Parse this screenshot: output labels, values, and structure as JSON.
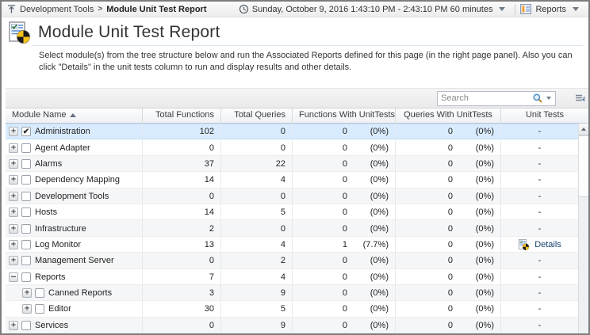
{
  "topbar": {
    "breadcrumb": {
      "items": [
        "Development Tools",
        "Module Unit Test Report"
      ],
      "separator": ">"
    },
    "time_range": "Sunday, October 9, 2016 1:43:10 PM - 2:43:10 PM 60 minutes",
    "reports_label": "Reports"
  },
  "header": {
    "title": "Module Unit Test Report"
  },
  "description": "Select module(s) from the tree structure below and run the Associated Reports defined for this page (in the right page panel). Also you can click \"Details\" in the unit tests column to run and display results and other details.",
  "toolbar": {
    "search_placeholder": "Search"
  },
  "colors": {
    "selected_row": "#d9ecff",
    "details_link": "#17406f",
    "pie_yellow": "#f6c21a",
    "pie_black": "#1a1a1a"
  },
  "table": {
    "columns": [
      {
        "label": "Module Name",
        "sort": "asc"
      },
      {
        "label": "Total Functions"
      },
      {
        "label": "Total Queries"
      },
      {
        "label": "Functions With UnitTests"
      },
      {
        "label": "Queries With UnitTests"
      },
      {
        "label": "Unit Tests"
      }
    ],
    "rows": [
      {
        "name": "Administration",
        "child": false,
        "expand": "+",
        "checked": true,
        "selected": true,
        "total_functions": "102",
        "total_queries": "0",
        "func_ut": "0",
        "func_ut_pct": "(0%)",
        "query_ut": "0",
        "query_ut_pct": "(0%)",
        "unit_tests": "-"
      },
      {
        "name": "Agent Adapter",
        "child": false,
        "expand": "+",
        "checked": false,
        "selected": false,
        "total_functions": "0",
        "total_queries": "0",
        "func_ut": "0",
        "func_ut_pct": "(0%)",
        "query_ut": "0",
        "query_ut_pct": "(0%)",
        "unit_tests": "-"
      },
      {
        "name": "Alarms",
        "child": false,
        "expand": "+",
        "checked": false,
        "selected": false,
        "total_functions": "37",
        "total_queries": "22",
        "func_ut": "0",
        "func_ut_pct": "(0%)",
        "query_ut": "0",
        "query_ut_pct": "(0%)",
        "unit_tests": "-"
      },
      {
        "name": "Dependency Mapping",
        "child": false,
        "expand": "+",
        "checked": false,
        "selected": false,
        "total_functions": "14",
        "total_queries": "4",
        "func_ut": "0",
        "func_ut_pct": "(0%)",
        "query_ut": "0",
        "query_ut_pct": "(0%)",
        "unit_tests": "-"
      },
      {
        "name": "Development Tools",
        "child": false,
        "expand": "+",
        "checked": false,
        "selected": false,
        "total_functions": "0",
        "total_queries": "0",
        "func_ut": "0",
        "func_ut_pct": "(0%)",
        "query_ut": "0",
        "query_ut_pct": "(0%)",
        "unit_tests": "-"
      },
      {
        "name": "Hosts",
        "child": false,
        "expand": "+",
        "checked": false,
        "selected": false,
        "total_functions": "14",
        "total_queries": "5",
        "func_ut": "0",
        "func_ut_pct": "(0%)",
        "query_ut": "0",
        "query_ut_pct": "(0%)",
        "unit_tests": "-"
      },
      {
        "name": "Infrastructure",
        "child": false,
        "expand": "+",
        "checked": false,
        "selected": false,
        "total_functions": "2",
        "total_queries": "0",
        "func_ut": "0",
        "func_ut_pct": "(0%)",
        "query_ut": "0",
        "query_ut_pct": "(0%)",
        "unit_tests": "-"
      },
      {
        "name": "Log Monitor",
        "child": false,
        "expand": "+",
        "checked": false,
        "selected": false,
        "total_functions": "13",
        "total_queries": "4",
        "func_ut": "1",
        "func_ut_pct": "(7.7%)",
        "query_ut": "0",
        "query_ut_pct": "(0%)",
        "unit_tests": "Details"
      },
      {
        "name": "Management Server",
        "child": false,
        "expand": "+",
        "checked": false,
        "selected": false,
        "total_functions": "0",
        "total_queries": "2",
        "func_ut": "0",
        "func_ut_pct": "(0%)",
        "query_ut": "0",
        "query_ut_pct": "(0%)",
        "unit_tests": "-"
      },
      {
        "name": "Reports",
        "child": false,
        "expand": "-",
        "checked": false,
        "selected": false,
        "total_functions": "7",
        "total_queries": "4",
        "func_ut": "0",
        "func_ut_pct": "(0%)",
        "query_ut": "0",
        "query_ut_pct": "(0%)",
        "unit_tests": "-"
      },
      {
        "name": "Canned Reports",
        "child": true,
        "expand": "+",
        "checked": false,
        "selected": false,
        "total_functions": "3",
        "total_queries": "9",
        "func_ut": "0",
        "func_ut_pct": "(0%)",
        "query_ut": "0",
        "query_ut_pct": "(0%)",
        "unit_tests": "-"
      },
      {
        "name": "Editor",
        "child": true,
        "expand": "+",
        "checked": false,
        "selected": false,
        "total_functions": "30",
        "total_queries": "5",
        "func_ut": "0",
        "func_ut_pct": "(0%)",
        "query_ut": "0",
        "query_ut_pct": "(0%)",
        "unit_tests": "-"
      },
      {
        "name": "Services",
        "child": false,
        "expand": "+",
        "checked": false,
        "selected": false,
        "total_functions": "0",
        "total_queries": "9",
        "func_ut": "0",
        "func_ut_pct": "(0%)",
        "query_ut": "0",
        "query_ut_pct": "(0%)",
        "unit_tests": "-"
      }
    ]
  }
}
